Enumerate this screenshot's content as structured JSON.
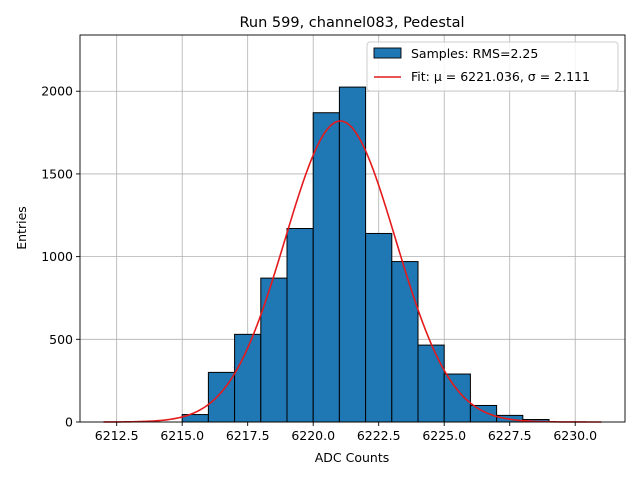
{
  "chart_data": {
    "type": "bar",
    "title": "Run 599, channel083, Pedestal",
    "xlabel": "ADC Counts",
    "ylabel": "Entries",
    "xlim": [
      6211.1,
      6231.9
    ],
    "ylim": [
      0,
      2340
    ],
    "xticks": [
      6212.5,
      6215.0,
      6217.5,
      6220.0,
      6222.5,
      6225.0,
      6227.5,
      6230.0
    ],
    "xtick_labels": [
      "6212.5",
      "6215.0",
      "6217.5",
      "6220.0",
      "6222.5",
      "6225.0",
      "6227.5",
      "6230.0"
    ],
    "yticks": [
      0,
      500,
      1000,
      1500,
      2000
    ],
    "ytick_labels": [
      "0",
      "500",
      "1000",
      "1500",
      "2000"
    ],
    "grid": true,
    "legend_position": "top-right",
    "bar_color": "#1f77b4",
    "fit_color": "#e41a1c",
    "series": [
      {
        "name": "Samples: RMS=2.25",
        "kind": "histogram",
        "bins": [
          {
            "x0": 6215,
            "x1": 6216,
            "count": 45
          },
          {
            "x0": 6216,
            "x1": 6217,
            "count": 300
          },
          {
            "x0": 6217,
            "x1": 6218,
            "count": 530
          },
          {
            "x0": 6218,
            "x1": 6219,
            "count": 870
          },
          {
            "x0": 6219,
            "x1": 6220,
            "count": 1170
          },
          {
            "x0": 6220,
            "x1": 6221,
            "count": 1870
          },
          {
            "x0": 6221,
            "x1": 6222,
            "count": 2025
          },
          {
            "x0": 6222,
            "x1": 6223,
            "count": 1140
          },
          {
            "x0": 6223,
            "x1": 6224,
            "count": 970
          },
          {
            "x0": 6224,
            "x1": 6225,
            "count": 465
          },
          {
            "x0": 6225,
            "x1": 6226,
            "count": 290
          },
          {
            "x0": 6226,
            "x1": 6227,
            "count": 100
          },
          {
            "x0": 6227,
            "x1": 6228,
            "count": 40
          },
          {
            "x0": 6228,
            "x1": 6229,
            "count": 15
          }
        ]
      },
      {
        "name": "Fit: μ = 6221.036, σ = 2.111",
        "kind": "gaussian",
        "mu": 6221.036,
        "sigma": 2.111,
        "amplitude": 1820,
        "x_range": [
          6212,
          6231
        ]
      }
    ]
  }
}
